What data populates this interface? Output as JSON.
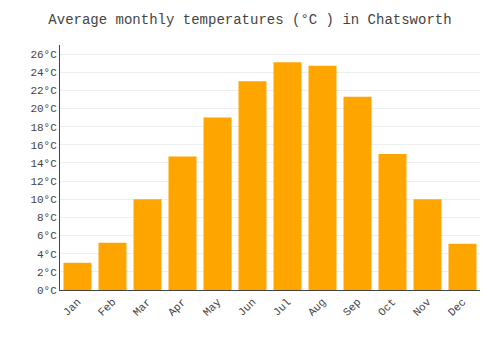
{
  "chart_data": {
    "type": "bar",
    "title": "Average monthly temperatures (°C ) in Chatsworth",
    "categories": [
      "Jan",
      "Feb",
      "Mar",
      "Apr",
      "May",
      "Jun",
      "Jul",
      "Aug",
      "Sep",
      "Oct",
      "Nov",
      "Dec"
    ],
    "values": [
      3,
      5.2,
      10,
      14.7,
      19,
      23,
      25.1,
      24.7,
      21.3,
      15,
      10,
      5.1
    ],
    "color": "#FFA500",
    "ylim": [
      0,
      27
    ],
    "yticks": [
      {
        "value": 0,
        "label": "0°C"
      },
      {
        "value": 2,
        "label": "2°C"
      },
      {
        "value": 4,
        "label": "4°C"
      },
      {
        "value": 6,
        "label": "6°C"
      },
      {
        "value": 8,
        "label": "8°C"
      },
      {
        "value": 10,
        "label": "10°C"
      },
      {
        "value": 12,
        "label": "12°C"
      },
      {
        "value": 14,
        "label": "14°C"
      },
      {
        "value": 16,
        "label": "16°C"
      },
      {
        "value": 18,
        "label": "18°C"
      },
      {
        "value": 20,
        "label": "20°C"
      },
      {
        "value": 22,
        "label": "22°C"
      },
      {
        "value": 24,
        "label": "24°C"
      },
      {
        "value": 26,
        "label": "26°C"
      }
    ],
    "grid": true
  }
}
